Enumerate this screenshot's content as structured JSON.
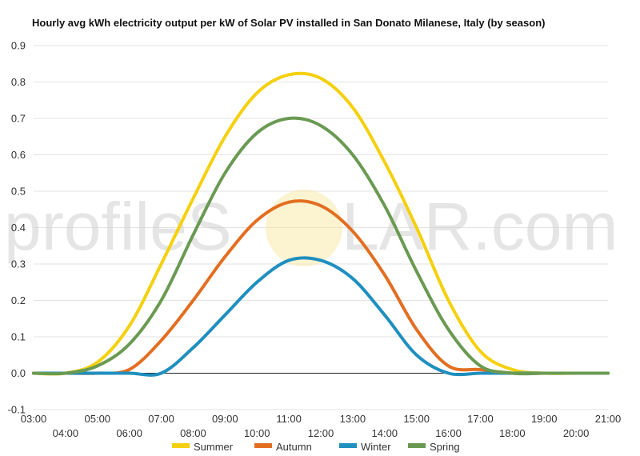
{
  "chart_data": {
    "type": "line",
    "title": "Hourly avg kWh electricity output per kW of Solar PV installed in San Donato Milanese, Italy (by season)",
    "xlabel": "",
    "ylabel": "",
    "ylim": [
      -0.1,
      0.9
    ],
    "yticks": [
      "-0.1",
      "0.0",
      "0.1",
      "0.2",
      "0.3",
      "0.4",
      "0.5",
      "0.6",
      "0.7",
      "0.8",
      "0.9"
    ],
    "xlim": [
      3,
      21
    ],
    "xticks_row1": [
      "03:00",
      "05:00",
      "07:00",
      "09:00",
      "11:00",
      "13:00",
      "15:00",
      "17:00",
      "19:00",
      "21:00"
    ],
    "xticks_row2": [
      "04:00",
      "06:00",
      "08:00",
      "10:00",
      "12:00",
      "14:00",
      "16:00",
      "18:00",
      "20:00"
    ],
    "grid": true,
    "legend_position": "bottom",
    "x": [
      3,
      4,
      5,
      6,
      7,
      8,
      9,
      10,
      11,
      12,
      13,
      14,
      15,
      16,
      17,
      18,
      19,
      20,
      21
    ],
    "series": [
      {
        "name": "Summer",
        "color": "#f5d00c",
        "values": [
          0.0,
          0.0,
          0.03,
          0.13,
          0.3,
          0.48,
          0.65,
          0.77,
          0.82,
          0.81,
          0.73,
          0.58,
          0.4,
          0.2,
          0.06,
          0.01,
          0.0,
          0.0,
          0.0
        ]
      },
      {
        "name": "Autumn",
        "color": "#e36e21",
        "values": [
          0.0,
          0.0,
          0.0,
          0.01,
          0.09,
          0.2,
          0.32,
          0.42,
          0.47,
          0.46,
          0.39,
          0.27,
          0.12,
          0.02,
          0.01,
          0.0,
          0.0,
          0.0,
          0.0
        ]
      },
      {
        "name": "Winter",
        "color": "#1f8fbf",
        "values": [
          0.0,
          0.0,
          0.0,
          0.0,
          0.0,
          0.07,
          0.16,
          0.25,
          0.31,
          0.31,
          0.26,
          0.16,
          0.05,
          0.0,
          0.0,
          0.0,
          0.0,
          0.0,
          0.0
        ]
      },
      {
        "name": "Spring",
        "color": "#6a9a52",
        "values": [
          0.0,
          0.0,
          0.02,
          0.08,
          0.2,
          0.38,
          0.55,
          0.66,
          0.7,
          0.68,
          0.6,
          0.46,
          0.28,
          0.12,
          0.02,
          0.0,
          0.0,
          0.0,
          0.0
        ]
      }
    ],
    "watermark": {
      "text_left": "profileS",
      "text_right": "LAR.com"
    }
  }
}
